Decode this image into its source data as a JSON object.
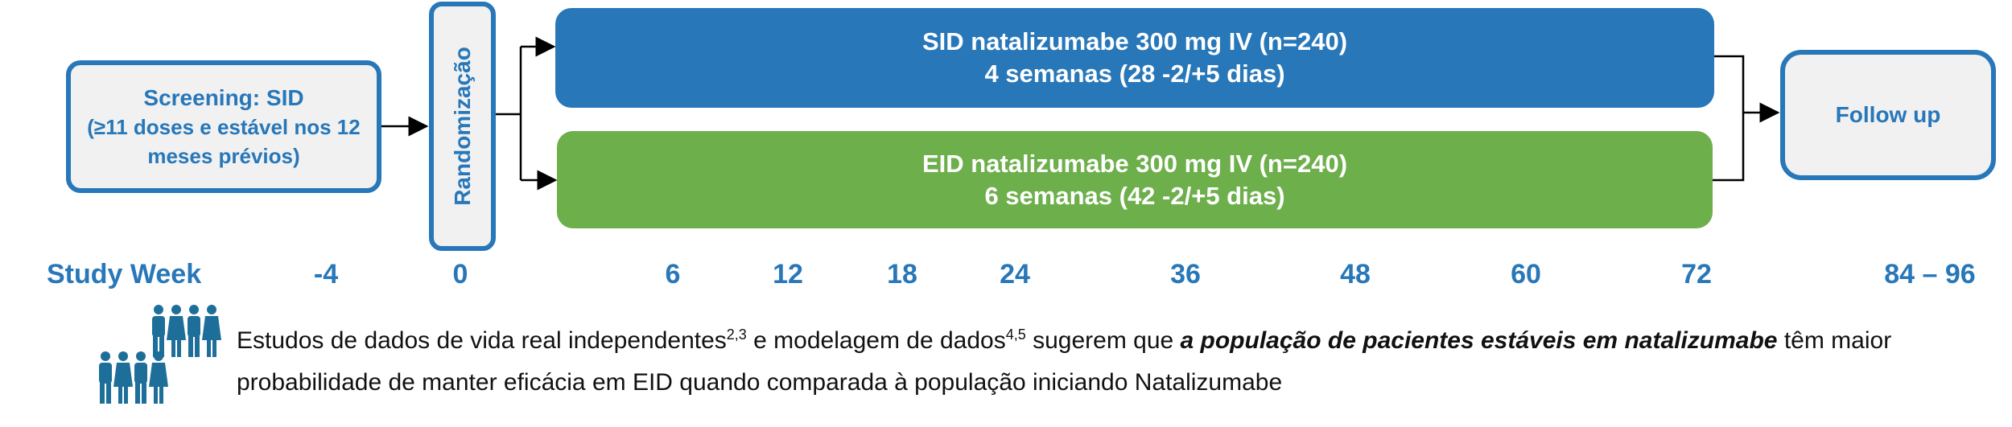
{
  "screening": {
    "line1": "Screening: SID",
    "line2": "(≥11 doses e estável nos 12",
    "line3": "meses prévios)"
  },
  "randomization": {
    "label": "Randomização"
  },
  "sid_arm": {
    "line1": "SID natalizumabe 300 mg IV (n=240)",
    "line2": "4 semanas (28 -2/+5 dias)",
    "color": "#2777b9"
  },
  "eid_arm": {
    "line1": "EID natalizumabe 300 mg IV (n=240)",
    "line2": "6 semanas (42 -2/+5 dias)",
    "color": "#6daf4b"
  },
  "followup": {
    "label": "Follow up"
  },
  "study_week": {
    "label": "Study Week",
    "ticks": [
      "-4",
      "0",
      "6",
      "12",
      "18",
      "24",
      "36",
      "48",
      "60",
      "72",
      "84 – 96"
    ]
  },
  "note": {
    "part1": "Estudos de dados de vida real independentes",
    "sup1": "2,3",
    "part2": " e modelagem de dados",
    "sup2": "4,5",
    "part3": " sugerem que ",
    "emphasis": "a população de pacientes estáveis em natalizumabe",
    "part4": " têm maior probabilidade de manter eficácia em EID quando comparada à população iniciando Natalizumabe"
  },
  "icons": {
    "people": "people-group-icon"
  }
}
